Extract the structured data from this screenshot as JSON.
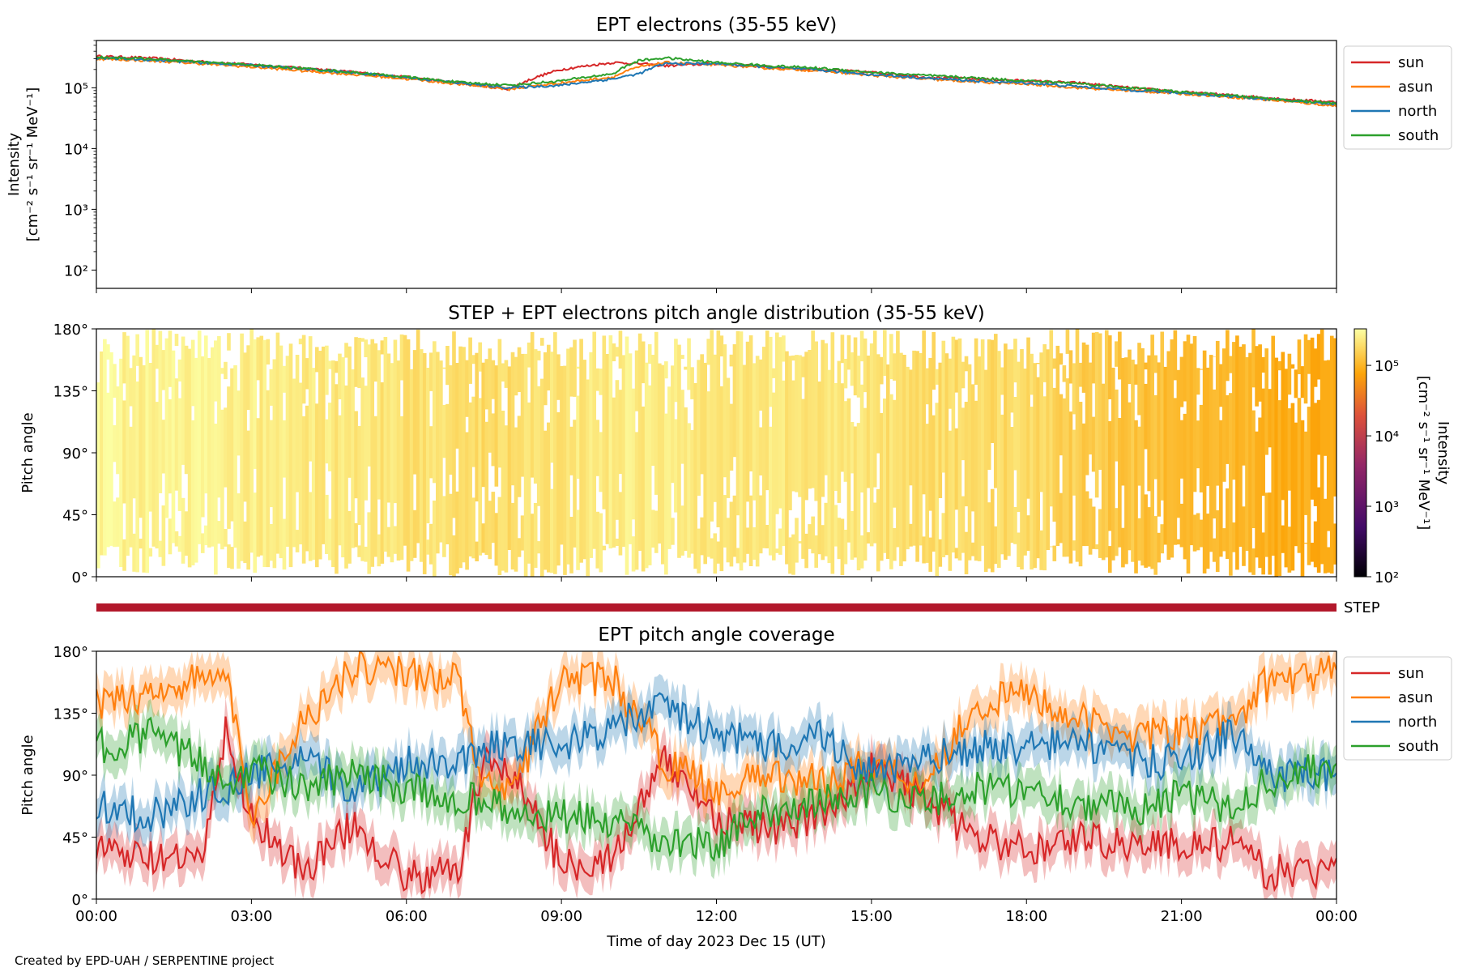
{
  "chart_data": [
    {
      "type": "line",
      "title": "EPT electrons (35-55 keV)",
      "ylabel_line1": "Intensity",
      "ylabel_line2": "[cm⁻² s⁻¹ sr⁻¹ MeV⁻¹]",
      "yscale": "log",
      "ylim": [
        50,
        600000
      ],
      "yticks": [
        "10²",
        "10³",
        "10⁴",
        "10⁵"
      ],
      "xlim_hours": [
        0,
        24
      ],
      "legend": {
        "placement": "outside-right-top",
        "entries": [
          "sun",
          "asun",
          "north",
          "south"
        ]
      },
      "x_hours": [
        0,
        1,
        2,
        3,
        4,
        5,
        6,
        7,
        8,
        9,
        10,
        10.5,
        11,
        12,
        13,
        14,
        15,
        16,
        17,
        18,
        19,
        20,
        21,
        22,
        23,
        24
      ],
      "series": [
        {
          "name": "sun",
          "color": "#d62728",
          "values": [
            330000,
            310000,
            270000,
            240000,
            210000,
            180000,
            150000,
            120000,
            95000,
            200000,
            260000,
            250000,
            230000,
            250000,
            220000,
            200000,
            180000,
            150000,
            140000,
            130000,
            120000,
            100000,
            85000,
            75000,
            65000,
            58000
          ]
        },
        {
          "name": "asun",
          "color": "#ff7f0e",
          "values": [
            300000,
            280000,
            250000,
            220000,
            190000,
            165000,
            140000,
            115000,
            95000,
            120000,
            150000,
            220000,
            260000,
            240000,
            210000,
            190000,
            160000,
            140000,
            125000,
            115000,
            100000,
            90000,
            80000,
            70000,
            60000,
            50000
          ]
        },
        {
          "name": "north",
          "color": "#1f77b4",
          "values": [
            310000,
            290000,
            260000,
            235000,
            205000,
            175000,
            148000,
            120000,
            100000,
            110000,
            140000,
            170000,
            250000,
            250000,
            220000,
            195000,
            165000,
            145000,
            130000,
            120000,
            105000,
            92000,
            82000,
            72000,
            62000,
            54000
          ]
        },
        {
          "name": "south",
          "color": "#2ca02c",
          "values": [
            320000,
            300000,
            265000,
            238000,
            208000,
            178000,
            150000,
            123000,
            110000,
            130000,
            170000,
            280000,
            310000,
            260000,
            230000,
            210000,
            180000,
            160000,
            145000,
            130000,
            118000,
            100000,
            85000,
            74000,
            63000,
            55000
          ]
        }
      ]
    },
    {
      "type": "heatmap",
      "title": "STEP + EPT electrons pitch angle distribution (35-55 keV)",
      "ylabel": "Pitch angle",
      "yticks": [
        "0°",
        "45°",
        "90°",
        "135°",
        "180°"
      ],
      "ylim": [
        0,
        180
      ],
      "colorbar": {
        "label_line1": "Intensity",
        "label_line2": "[cm⁻² s⁻¹ sr⁻¹ MeV⁻¹]",
        "scale": "log",
        "range": [
          100,
          330000
        ],
        "ticks": [
          "10²",
          "10³",
          "10⁴",
          "10⁵"
        ]
      },
      "x_hours": [
        0,
        2,
        4,
        6,
        7.3,
        8.5,
        10,
        12,
        14,
        16,
        18,
        19.5,
        21,
        22.6,
        24
      ],
      "values": [
        280000,
        270000,
        240000,
        210000,
        190000,
        200000,
        250000,
        230000,
        220000,
        200000,
        180000,
        140000,
        110000,
        95000,
        80000
      ]
    },
    {
      "type": "line",
      "title": "EPT pitch angle coverage",
      "ylabel": "Pitch angle",
      "xlabel": "Time of day 2023 Dec 15 (UT)",
      "xticks": [
        "00:00",
        "03:00",
        "06:00",
        "09:00",
        "12:00",
        "15:00",
        "18:00",
        "21:00",
        "00:00"
      ],
      "yticks": [
        "0°",
        "45°",
        "90°",
        "135°",
        "180°"
      ],
      "ylim": [
        0,
        180
      ],
      "legend": {
        "placement": "outside-right-top",
        "entries": [
          "sun",
          "asun",
          "north",
          "south"
        ]
      },
      "step_label": "STEP",
      "x_hours": [
        0,
        1,
        2,
        2.5,
        3,
        4,
        5,
        6,
        7,
        7.5,
        8,
        9,
        10,
        11,
        12,
        13,
        14,
        15,
        16,
        17,
        18,
        19,
        20,
        21,
        22,
        22.6,
        23,
        24
      ],
      "series": [
        {
          "name": "sun",
          "color": "#d62728",
          "values": [
            35,
            30,
            25,
            120,
            60,
            20,
            55,
            15,
            20,
            100,
            95,
            25,
            30,
            100,
            60,
            50,
            60,
            95,
            75,
            45,
            35,
            45,
            40,
            40,
            40,
            20,
            20,
            20
          ]
        },
        {
          "name": "asun",
          "color": "#ff7f0e",
          "values": [
            140,
            150,
            160,
            165,
            60,
            130,
            170,
            165,
            160,
            80,
            75,
            160,
            160,
            100,
            80,
            90,
            85,
            100,
            85,
            140,
            150,
            130,
            120,
            120,
            130,
            155,
            160,
            165
          ]
        },
        {
          "name": "north",
          "color": "#1f77b4",
          "values": [
            70,
            60,
            75,
            80,
            90,
            100,
            80,
            100,
            100,
            110,
            115,
            110,
            125,
            140,
            120,
            110,
            120,
            90,
            100,
            110,
            110,
            115,
            100,
            100,
            120,
            95,
            90,
            90
          ]
        },
        {
          "name": "south",
          "color": "#2ca02c",
          "values": [
            110,
            120,
            100,
            85,
            95,
            80,
            90,
            80,
            70,
            75,
            60,
            60,
            55,
            40,
            40,
            65,
            70,
            80,
            70,
            80,
            80,
            70,
            65,
            75,
            65,
            85,
            90,
            95
          ]
        }
      ]
    }
  ],
  "footer": {
    "credit": "Created by EPD-UAH / SERPENTINE project"
  }
}
